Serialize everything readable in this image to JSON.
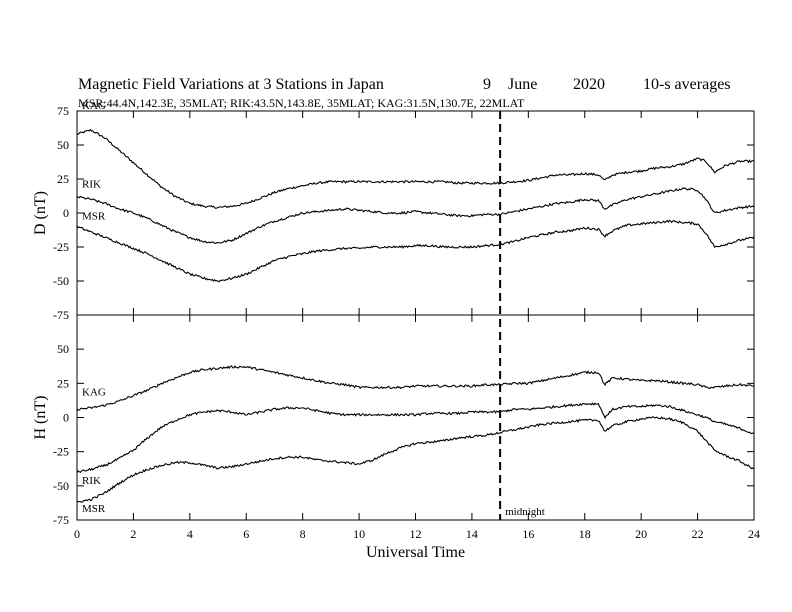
{
  "title": {
    "main": "Magnetic Field Variations at 3 Stations in Japan",
    "day": "9",
    "month": "June",
    "year": "2020",
    "averages": "10-s averages"
  },
  "subtitle": "MSR:44.4N,142.3E, 35MLAT;  RIK:43.5N,143.8E, 35MLAT;  KAG:31.5N,130.7E, 22MLAT",
  "colors": {
    "axes": "#000000",
    "lines": "#000000",
    "background": "#ffffff"
  },
  "chart_data": {
    "type": "line",
    "xlabel": "Universal Time",
    "xlim": [
      0,
      24
    ],
    "xticks": [
      0,
      2,
      4,
      6,
      8,
      10,
      12,
      14,
      16,
      18,
      20,
      22,
      24
    ],
    "tick_labels_x": [
      "0",
      "2",
      "4",
      "6",
      "8",
      "10",
      "12",
      "14",
      "16",
      "18",
      "20",
      "22",
      "24"
    ],
    "annotation": {
      "x": 15,
      "label": "midnight",
      "style": "dashed"
    },
    "panels": [
      {
        "ylabel": "D (nT)",
        "ylim": [
          -75,
          75
        ],
        "yticks": [
          75,
          50,
          25,
          0,
          -25,
          -50,
          -75
        ],
        "tick_labels_y": [
          "75",
          "50",
          "25",
          "0",
          "-25",
          "-50",
          "-75"
        ],
        "series": [
          {
            "name": "KAG",
            "x": [
              0,
              0.5,
              1,
              1.5,
              2,
              2.5,
              3,
              3.5,
              4,
              4.5,
              5,
              5.5,
              6,
              6.5,
              7,
              7.5,
              8,
              8.5,
              9,
              9.5,
              10,
              10.5,
              11,
              11.5,
              12,
              12.5,
              13,
              13.5,
              14,
              14.5,
              15,
              15.5,
              16,
              16.5,
              17,
              17.5,
              18,
              18.5,
              18.7,
              19,
              19.5,
              20,
              20.5,
              21,
              21.5,
              22,
              22.3,
              22.6,
              23,
              23.5,
              24
            ],
            "values": [
              58,
              61,
              55,
              46,
              37,
              28,
              19,
              12,
              7,
              5,
              4,
              5,
              7,
              11,
              15,
              18,
              20,
              22,
              23,
              23,
              23,
              23,
              23,
              23,
              23,
              23,
              23,
              22,
              22,
              22,
              22,
              23,
              24,
              26,
              28,
              28,
              29,
              28,
              24,
              28,
              30,
              31,
              33,
              34,
              36,
              40,
              38,
              30,
              35,
              38,
              38
            ]
          },
          {
            "name": "RIK",
            "x": [
              0,
              0.5,
              1,
              1.5,
              2,
              2.5,
              3,
              3.5,
              4,
              4.5,
              5,
              5.5,
              6,
              6.5,
              7,
              7.5,
              8,
              8.5,
              9,
              9.5,
              10,
              10.5,
              11,
              11.5,
              12,
              12.5,
              13,
              13.5,
              14,
              14.5,
              15,
              15.5,
              16,
              16.5,
              17,
              17.5,
              18,
              18.5,
              18.7,
              19,
              19.5,
              20,
              20.5,
              21,
              21.5,
              22,
              22.3,
              22.6,
              23,
              23.5,
              24
            ],
            "values": [
              12,
              10,
              7,
              3,
              0,
              -4,
              -9,
              -14,
              -18,
              -21,
              -22,
              -20,
              -15,
              -10,
              -6,
              -3,
              0,
              1,
              2,
              3,
              2,
              1,
              0,
              0,
              1,
              0,
              -1,
              -2,
              -2,
              -1,
              -1,
              1,
              3,
              5,
              7,
              8,
              10,
              9,
              3,
              6,
              10,
              12,
              14,
              16,
              18,
              17,
              10,
              0,
              2,
              4,
              5
            ]
          },
          {
            "name": "MSR",
            "x": [
              0,
              0.5,
              1,
              1.5,
              2,
              2.5,
              3,
              3.5,
              4,
              4.5,
              5,
              5.5,
              6,
              6.5,
              7,
              7.5,
              8,
              8.5,
              9,
              9.5,
              10,
              10.5,
              11,
              11.5,
              12,
              12.5,
              13,
              13.5,
              14,
              14.5,
              15,
              15.5,
              16,
              16.5,
              17,
              17.5,
              18,
              18.5,
              18.7,
              19,
              19.5,
              20,
              20.5,
              21,
              21.5,
              22,
              22.3,
              22.6,
              23,
              23.5,
              24
            ],
            "values": [
              -10,
              -14,
              -18,
              -22,
              -26,
              -30,
              -35,
              -40,
              -45,
              -48,
              -50,
              -48,
              -45,
              -40,
              -35,
              -32,
              -30,
              -28,
              -27,
              -26,
              -26,
              -25,
              -25,
              -25,
              -24,
              -24,
              -25,
              -25,
              -25,
              -24,
              -23,
              -21,
              -18,
              -16,
              -14,
              -13,
              -11,
              -12,
              -17,
              -13,
              -9,
              -8,
              -7,
              -6,
              -7,
              -8,
              -15,
              -25,
              -23,
              -20,
              -18
            ]
          }
        ]
      },
      {
        "ylabel": "H (nT)",
        "ylim": [
          -75,
          75
        ],
        "yticks": [
          50,
          25,
          0,
          -25,
          -50,
          -75
        ],
        "tick_labels_y": [
          "50",
          "25",
          "0",
          "-25",
          "-50",
          "-75"
        ],
        "series": [
          {
            "name": "KAG",
            "x": [
              0,
              0.5,
              1,
              1.5,
              2,
              2.5,
              3,
              3.5,
              4,
              4.5,
              5,
              5.5,
              6,
              6.5,
              7,
              7.5,
              8,
              8.5,
              9,
              9.5,
              10,
              10.5,
              11,
              11.5,
              12,
              12.5,
              13,
              13.5,
              14,
              14.5,
              15,
              15.5,
              16,
              16.5,
              17,
              17.5,
              18,
              18.5,
              18.7,
              19,
              19.5,
              20,
              20.5,
              21,
              21.5,
              22,
              22.3,
              22.6,
              23,
              23.5,
              24
            ],
            "values": [
              6,
              7,
              9,
              12,
              16,
              20,
              25,
              29,
              33,
              35,
              36,
              37,
              37,
              35,
              33,
              31,
              29,
              27,
              25,
              24,
              22,
              22,
              22,
              22,
              23,
              23,
              23,
              23,
              23,
              24,
              24,
              25,
              25,
              27,
              29,
              31,
              33,
              33,
              24,
              29,
              28,
              27,
              27,
              26,
              25,
              24,
              22,
              22,
              23,
              24,
              23
            ]
          },
          {
            "name": "RIK",
            "x": [
              0,
              0.5,
              1,
              1.5,
              2,
              2.5,
              3,
              3.5,
              4,
              4.5,
              5,
              5.5,
              6,
              6.5,
              7,
              7.5,
              8,
              8.5,
              9,
              9.5,
              10,
              10.5,
              11,
              11.5,
              12,
              12.5,
              13,
              13.5,
              14,
              14.5,
              15,
              15.5,
              16,
              16.5,
              17,
              17.5,
              18,
              18.5,
              18.7,
              19,
              19.5,
              20,
              20.5,
              21,
              21.5,
              22,
              22.3,
              22.6,
              23,
              23.5,
              24
            ],
            "values": [
              -40,
              -38,
              -35,
              -30,
              -24,
              -15,
              -7,
              -2,
              2,
              4,
              5,
              4,
              2,
              4,
              6,
              7,
              7,
              5,
              3,
              2,
              2,
              2,
              2,
              2,
              2,
              3,
              3,
              3,
              4,
              4,
              4,
              6,
              6,
              7,
              8,
              9,
              10,
              10,
              0,
              6,
              8,
              8,
              9,
              8,
              5,
              2,
              0,
              -3,
              -5,
              -8,
              -12
            ]
          },
          {
            "name": "MSR",
            "x": [
              0,
              0.5,
              1,
              1.5,
              2,
              2.5,
              3,
              3.5,
              4,
              4.5,
              5,
              5.5,
              6,
              6.5,
              7,
              7.5,
              8,
              8.5,
              9,
              9.5,
              10,
              10.5,
              11,
              11.5,
              12,
              12.5,
              13,
              13.5,
              14,
              14.5,
              15,
              15.5,
              16,
              16.5,
              17,
              17.5,
              18,
              18.5,
              18.7,
              19,
              19.5,
              20,
              20.5,
              21,
              21.5,
              22,
              22.3,
              22.6,
              23,
              23.5,
              24
            ],
            "values": [
              -62,
              -60,
              -55,
              -48,
              -42,
              -38,
              -35,
              -33,
              -33,
              -35,
              -37,
              -36,
              -34,
              -32,
              -30,
              -29,
              -29,
              -31,
              -32,
              -33,
              -34,
              -31,
              -26,
              -22,
              -19,
              -18,
              -17,
              -15,
              -14,
              -13,
              -11,
              -9,
              -7,
              -5,
              -4,
              -3,
              -2,
              -2,
              -10,
              -6,
              -3,
              -1,
              0,
              -1,
              -4,
              -10,
              -17,
              -24,
              -28,
              -32,
              -38
            ]
          }
        ]
      }
    ]
  }
}
